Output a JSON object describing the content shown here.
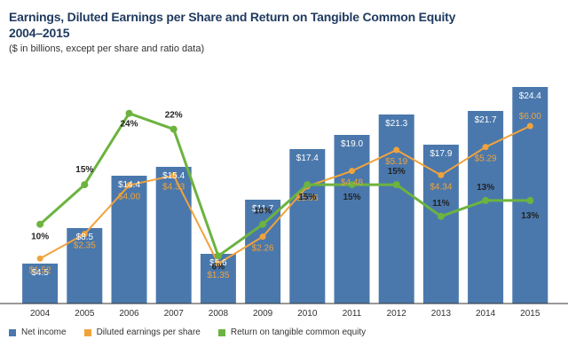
{
  "chart_data": {
    "type": "bar",
    "title": "Earnings, Diluted Earnings per Share and Return on Tangible Common Equity",
    "subtitle": "2004–2015",
    "note": "($ in billions, except per share and ratio data)",
    "categories": [
      "2004",
      "2005",
      "2006",
      "2007",
      "2008",
      "2009",
      "2010",
      "2011",
      "2012",
      "2013",
      "2014",
      "2015"
    ],
    "series": [
      {
        "name": "Net income",
        "type": "bar",
        "color": "#4a78ac",
        "values": [
          4.5,
          8.5,
          14.4,
          15.4,
          5.6,
          11.7,
          17.4,
          19.0,
          21.3,
          17.9,
          21.7,
          24.4
        ],
        "labels": [
          "$4.5",
          "$8.5",
          "$14.4",
          "$15.4",
          "$5.6",
          "$11.7",
          "$17.4",
          "$19.0",
          "$21.3",
          "$17.9",
          "$21.7",
          "$24.4"
        ]
      },
      {
        "name": "Diluted earnings per share",
        "type": "line",
        "color": "#f0a33c",
        "values": [
          1.52,
          2.35,
          4.0,
          4.33,
          1.35,
          2.26,
          3.96,
          4.48,
          5.19,
          4.34,
          5.29,
          6.0
        ],
        "labels": [
          "$1.52",
          "$2.35",
          "$4.00",
          "$4.33",
          "$1.35",
          "$2.26",
          "$3.96",
          "$4.48",
          "$5.19",
          "$4.34",
          "$5.29",
          "$6.00"
        ]
      },
      {
        "name": "Return on tangible common equity",
        "type": "line",
        "color": "#6cb33f",
        "values": [
          10,
          15,
          24,
          22,
          6,
          10,
          15,
          15,
          15,
          11,
          13,
          13
        ],
        "labels": [
          "10%",
          "15%",
          "24%",
          "22%",
          "6%",
          "10%",
          "15%",
          "15%",
          "15%",
          "11%",
          "13%",
          "13%"
        ]
      }
    ],
    "ylim": [
      0,
      25
    ],
    "eps_scale": [
      0,
      7.5
    ],
    "rotce_scale": [
      0,
      28
    ],
    "legend_position": "bottom-left"
  }
}
